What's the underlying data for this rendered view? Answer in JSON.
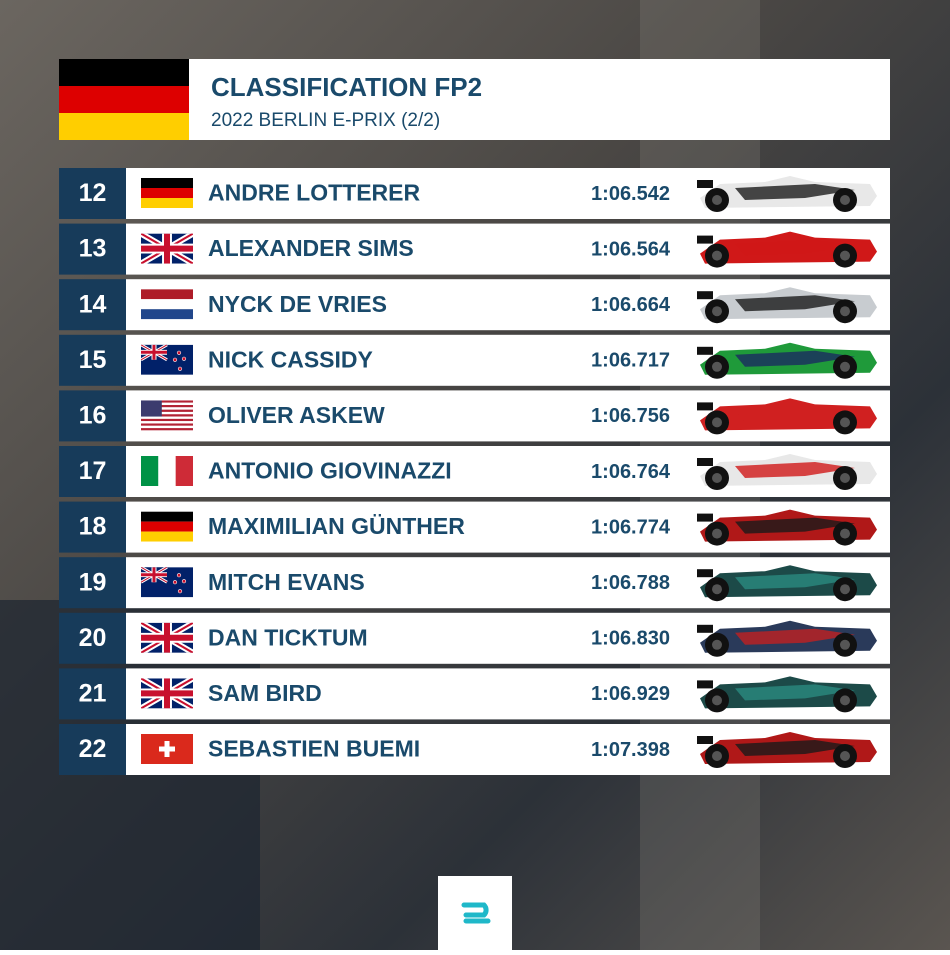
{
  "header": {
    "title": "CLASSIFICATION FP2",
    "subtitle": "2022 BERLIN E-PRIX (2/2)"
  },
  "table": {
    "rows": [
      {
        "position": 12,
        "driver": "ANDRE LOTTERER",
        "time": "1:06.542"
      },
      {
        "position": 13,
        "driver": "ALEXANDER SIMS",
        "time": "1:06.564"
      },
      {
        "position": 14,
        "driver": "NYCK DE VRIES",
        "time": "1:06.664"
      },
      {
        "position": 15,
        "driver": "NICK CASSIDY",
        "time": "1:06.717"
      },
      {
        "position": 16,
        "driver": "OLIVER ASKEW",
        "time": "1:06.756"
      },
      {
        "position": 17,
        "driver": "ANTONIO GIOVINAZZI",
        "time": "1:06.764"
      },
      {
        "position": 18,
        "driver": "MAXIMILIAN GÜNTHER",
        "time": "1:06.774"
      },
      {
        "position": 19,
        "driver": "MITCH EVANS",
        "time": "1:06.788"
      },
      {
        "position": 20,
        "driver": "DAN TICKTUM",
        "time": "1:06.830"
      },
      {
        "position": 21,
        "driver": "SAM BIRD",
        "time": "1:06.929"
      },
      {
        "position": 22,
        "driver": "SEBASTIEN BUEMI",
        "time": "1:07.398"
      }
    ]
  }
}
